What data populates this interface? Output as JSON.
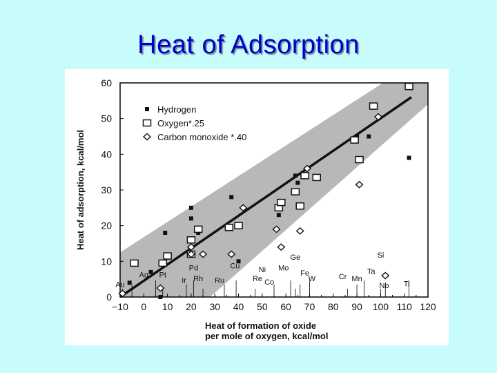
{
  "page": {
    "title": "Heat of Adsorption"
  },
  "chart_data": {
    "type": "scatter",
    "xlabel": "Heat of formation of oxide",
    "xlabel2": "per mole of oxygen, kcal/mol",
    "ylabel": "Heat of adsorption, kcal/mol",
    "xlim": [
      -10,
      120
    ],
    "ylim": [
      0,
      60
    ],
    "xticks": [
      -10,
      0,
      10,
      20,
      30,
      40,
      50,
      60,
      70,
      80,
      90,
      100,
      110,
      120
    ],
    "yticks": [
      0,
      10,
      20,
      30,
      40,
      50,
      60
    ],
    "legend": [
      {
        "name": "Hydrogen",
        "marker": "square-filled"
      },
      {
        "name": "Oxygen*.25",
        "marker": "square-open"
      },
      {
        "name": "Carbon monoxide *.40",
        "marker": "diamond-open"
      }
    ],
    "legend_position": "top-left",
    "fit_line": {
      "x": [
        -10,
        113
      ],
      "y": [
        0,
        56
      ]
    },
    "band": {
      "upper": [
        [
          -10,
          12.5
        ],
        [
          101,
          60
        ]
      ],
      "lower": [
        [
          28,
          0
        ],
        [
          120,
          54
        ]
      ]
    },
    "band_color": "#b8b8b8",
    "series": [
      {
        "name": "Hydrogen",
        "marker": "square-filled",
        "points": [
          [
            -9,
            1
          ],
          [
            -6,
            4
          ],
          [
            3,
            7
          ],
          [
            7,
            0
          ],
          [
            9,
            18
          ],
          [
            20,
            25
          ],
          [
            20,
            22
          ],
          [
            23,
            18
          ],
          [
            37,
            28
          ],
          [
            40,
            10
          ],
          [
            57,
            23
          ],
          [
            64,
            34
          ],
          [
            65,
            32
          ],
          [
            90,
            45
          ],
          [
            95,
            45
          ],
          [
            112,
            39
          ]
        ]
      },
      {
        "name": "Oxygen*.25",
        "marker": "square-open",
        "points": [
          [
            -4,
            9.5
          ],
          [
            8,
            9.5
          ],
          [
            10,
            11.5
          ],
          [
            20,
            16
          ],
          [
            20,
            12
          ],
          [
            23,
            19
          ],
          [
            36,
            19.5
          ],
          [
            40,
            20
          ],
          [
            57,
            25
          ],
          [
            58,
            26.5
          ],
          [
            64,
            29.5
          ],
          [
            66,
            25.5
          ],
          [
            68,
            34
          ],
          [
            73,
            33.5
          ],
          [
            89,
            44
          ],
          [
            91,
            38.5
          ],
          [
            97,
            53.5
          ],
          [
            112,
            59
          ]
        ]
      },
      {
        "name": "Carbon monoxide *.40",
        "marker": "diamond-open",
        "points": [
          [
            -9,
            1
          ],
          [
            7,
            2.5
          ],
          [
            20,
            12
          ],
          [
            20,
            14
          ],
          [
            25,
            12
          ],
          [
            37,
            12
          ],
          [
            42,
            25
          ],
          [
            56,
            19
          ],
          [
            58,
            14
          ],
          [
            66,
            18.5
          ],
          [
            69,
            36
          ],
          [
            91,
            31.5
          ],
          [
            99,
            50.5
          ],
          [
            102,
            6
          ]
        ]
      }
    ],
    "element_labels": [
      {
        "label": "Au",
        "x": -10,
        "y": 2.8
      },
      {
        "label": "Ag",
        "x": 0,
        "y": 5.5
      },
      {
        "label": "Pt",
        "x": 8,
        "y": 5.5
      },
      {
        "label": "Pd",
        "x": 21,
        "y": 7.5
      },
      {
        "label": "Ir",
        "x": 17,
        "y": 4
      },
      {
        "label": "Rh",
        "x": 23,
        "y": 4.5
      },
      {
        "label": "Ru",
        "x": 32,
        "y": 4
      },
      {
        "label": "Cu",
        "x": 38.5,
        "y": 8
      },
      {
        "label": "Re",
        "x": 48,
        "y": 4.5
      },
      {
        "label": "Ni",
        "x": 50,
        "y": 7
      },
      {
        "label": "Co",
        "x": 53,
        "y": 3.5
      },
      {
        "label": "Mo",
        "x": 59,
        "y": 7.5
      },
      {
        "label": "Ge",
        "x": 64,
        "y": 10.5
      },
      {
        "label": "Fe",
        "x": 68,
        "y": 6
      },
      {
        "label": "W",
        "x": 71,
        "y": 4.5
      },
      {
        "label": "Cr",
        "x": 84,
        "y": 5
      },
      {
        "label": "Mn",
        "x": 90,
        "y": 4.5
      },
      {
        "label": "Ta",
        "x": 96,
        "y": 6.5
      },
      {
        "label": "Si",
        "x": 100,
        "y": 11
      },
      {
        "label": "Nb",
        "x": 101.5,
        "y": 2.5
      },
      {
        "label": "Ti",
        "x": 111,
        "y": 3
      }
    ],
    "element_drop_lines": [
      -9,
      -5,
      5,
      8,
      18,
      21,
      25,
      34,
      39,
      47,
      55,
      62,
      64,
      66,
      70,
      86,
      90,
      93,
      100,
      102,
      112
    ],
    "grid": false
  }
}
